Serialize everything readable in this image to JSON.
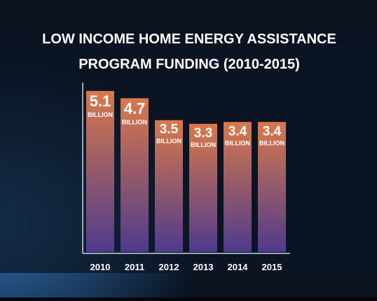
{
  "chart_data": {
    "type": "bar",
    "title": [
      "LOW INCOME HOME ENERGY ASSISTANCE",
      "PROGRAM FUNDING (2010-2015)"
    ],
    "categories": [
      "2010",
      "2011",
      "2012",
      "2013",
      "2014",
      "2015"
    ],
    "values": [
      5.1,
      4.7,
      3.5,
      3.3,
      3.4,
      3.4
    ],
    "unit_label": "BILLION",
    "color_top": "#d9794a",
    "color_bottom": "#4e3a8c"
  }
}
